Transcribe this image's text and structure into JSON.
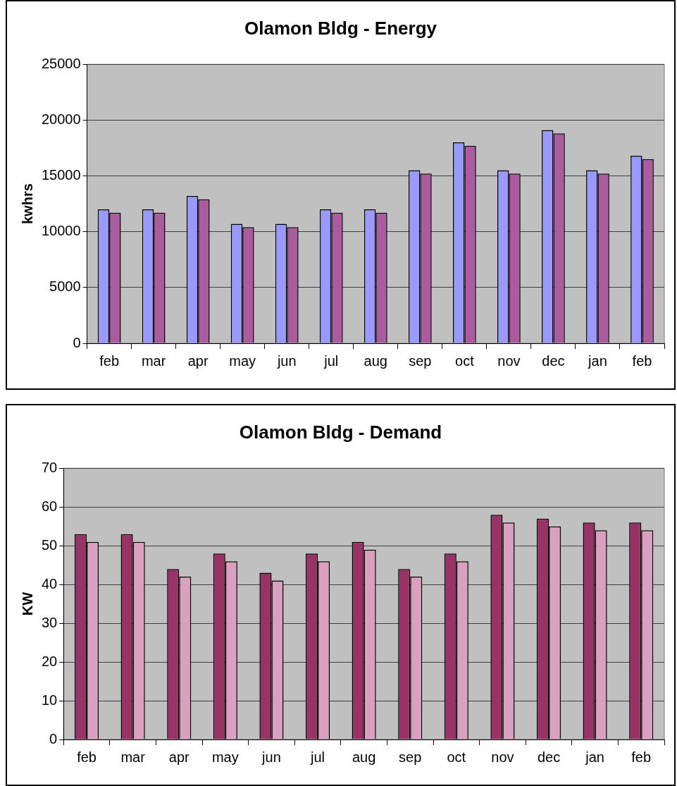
{
  "chart_data": [
    {
      "type": "bar",
      "title": "Olamon Bldg - Energy",
      "ylabel": "kwhrs",
      "categories": [
        "feb",
        "mar",
        "apr",
        "may",
        "jun",
        "jul",
        "aug",
        "sep",
        "oct",
        "nov",
        "dec",
        "jan",
        "feb"
      ],
      "series": [
        {
          "color": "#9999ff",
          "values": [
            12000,
            12000,
            13200,
            10700,
            10700,
            12000,
            12000,
            15500,
            18000,
            15500,
            19100,
            15500,
            16800
          ]
        },
        {
          "color": "#aa5c9e",
          "values": [
            11700,
            11700,
            12900,
            10400,
            10400,
            11700,
            11700,
            15200,
            17700,
            15200,
            18800,
            15200,
            16500
          ]
        }
      ],
      "ylim": [
        0,
        25000
      ],
      "yticks": [
        0,
        5000,
        10000,
        15000,
        20000,
        25000
      ],
      "grid": "y",
      "legend": false
    },
    {
      "type": "bar",
      "title": "Olamon Bldg - Demand",
      "ylabel": "KW",
      "categories": [
        "feb",
        "mar",
        "apr",
        "may",
        "jun",
        "jul",
        "aug",
        "sep",
        "oct",
        "nov",
        "dec",
        "jan",
        "feb"
      ],
      "series": [
        {
          "color": "#993366",
          "values": [
            53,
            53,
            44,
            48,
            43,
            48,
            51,
            44,
            48,
            58,
            57,
            56,
            56
          ]
        },
        {
          "color": "#d9a0bf",
          "values": [
            51,
            51,
            42,
            46,
            41,
            46,
            49,
            42,
            46,
            56,
            55,
            54,
            54
          ]
        }
      ],
      "ylim": [
        0,
        70
      ],
      "yticks": [
        0,
        10,
        20,
        30,
        40,
        50,
        60,
        70
      ],
      "grid": "y",
      "legend": false
    }
  ]
}
